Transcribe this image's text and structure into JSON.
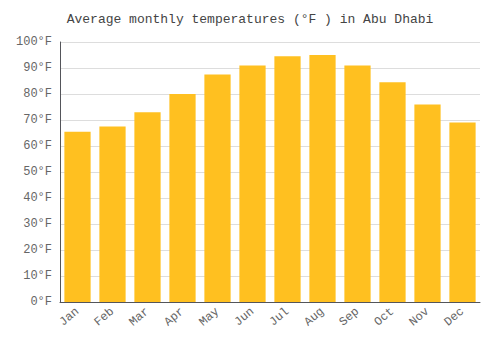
{
  "chart_data": {
    "type": "bar",
    "title": "Average monthly temperatures (°F ) in Abu Dhabi",
    "categories": [
      "Jan",
      "Feb",
      "Mar",
      "Apr",
      "May",
      "Jun",
      "Jul",
      "Aug",
      "Sep",
      "Oct",
      "Nov",
      "Dec"
    ],
    "values": [
      65.5,
      67.5,
      73,
      80,
      87.5,
      91,
      94.5,
      95,
      91,
      84.5,
      76,
      69
    ],
    "color": "#FFC020",
    "ylim": [
      0,
      100
    ],
    "yticks": [
      {
        "value": 0,
        "label": "0°F"
      },
      {
        "value": 10,
        "label": "10°F"
      },
      {
        "value": 20,
        "label": "20°F"
      },
      {
        "value": 30,
        "label": "30°F"
      },
      {
        "value": 40,
        "label": "40°F"
      },
      {
        "value": 50,
        "label": "50°F"
      },
      {
        "value": 60,
        "label": "60°F"
      },
      {
        "value": 70,
        "label": "70°F"
      },
      {
        "value": 80,
        "label": "80°F"
      },
      {
        "value": 90,
        "label": "90°F"
      },
      {
        "value": 100,
        "label": "100°F"
      }
    ],
    "grid": true
  }
}
